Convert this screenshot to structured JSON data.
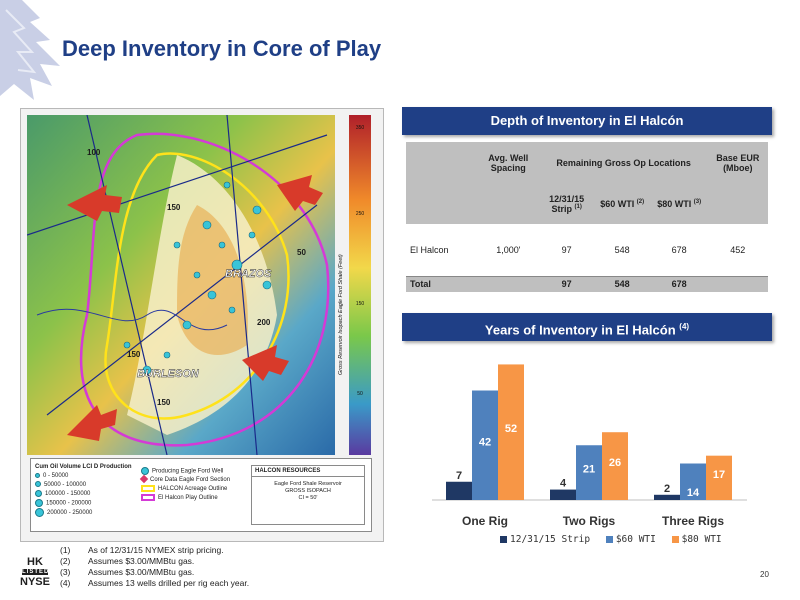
{
  "title": "Deep Inventory in Core of Play",
  "map": {
    "labels": {
      "brazos": "BRAZOS",
      "burleson": "BURLESON"
    },
    "axis_label": "Gross Reservoir Isopach Eagle Ford Shale (Feet)",
    "contour_labels": [
      "150",
      "150",
      "150",
      "200",
      "100",
      "50"
    ],
    "scale_ticks": [
      "350",
      "250",
      "150",
      "50"
    ],
    "legend": {
      "title": "Cum Oil Volume LCI D Production",
      "ranges": [
        "0 - 50000",
        "50000 - 100000",
        "100000 - 150000",
        "150000 - 200000",
        "200000 - 250000"
      ],
      "items": [
        "Producing Eagle Ford Well",
        "Core Data Eagle Ford Section",
        "HALCON Acreage Outline",
        "El Halcon Play Outline"
      ],
      "company_box": {
        "title": "HALCON RESOURCES",
        "line1": "Eagle Ford Shale Reservoir",
        "line2": "GROSS ISOPACH",
        "line3": "CI = 50'"
      }
    }
  },
  "inventory": {
    "header": "Depth of Inventory in El Halcón",
    "col_spacing": "Avg. Well Spacing",
    "col_remaining": "Remaining Gross Op Locations",
    "col_eur": "Base EUR (Mboe)",
    "sub_strip": "12/31/15 Strip",
    "sub_strip_note": "(1)",
    "sub_60": "$60 WTI",
    "sub_60_note": "(2)",
    "sub_80": "$80 WTI",
    "sub_80_note": "(3)",
    "rows": [
      {
        "name": "El Halcon",
        "spacing": "1,000'",
        "strip": "97",
        "wti60": "548",
        "wti80": "678",
        "eur": "452"
      }
    ],
    "total": {
      "name": "Total",
      "strip": "97",
      "wti60": "548",
      "wti80": "678"
    }
  },
  "years": {
    "header": "Years of Inventory in El Halcón",
    "header_note": "(4)"
  },
  "chart_data": {
    "type": "bar",
    "categories": [
      "One Rig",
      "Two Rigs",
      "Three Rigs"
    ],
    "series": [
      {
        "name": "12/31/15 Strip",
        "color": "#1f3864",
        "values": [
          7,
          4,
          2
        ]
      },
      {
        "name": "$60 WTI",
        "color": "#4f81bd",
        "values": [
          42,
          21,
          14
        ]
      },
      {
        "name": "$80 WTI",
        "color": "#f79646",
        "values": [
          52,
          26,
          17
        ]
      }
    ],
    "ylim": [
      0,
      56
    ],
    "legend": "bottom"
  },
  "footnotes": [
    {
      "num": "(1)",
      "text": "As of 12/31/15 NYMEX strip pricing."
    },
    {
      "num": "(2)",
      "text": "Assumes $3.00/MMBtu gas."
    },
    {
      "num": "(3)",
      "text": "Assumes $3.00/MMBtu gas."
    },
    {
      "num": "(4)",
      "text": "Assumes 13 wells drilled per rig each year."
    }
  ],
  "ticker": {
    "line1": "HK",
    "line2": "LISTED",
    "line3": "NYSE"
  },
  "page_number": "20"
}
